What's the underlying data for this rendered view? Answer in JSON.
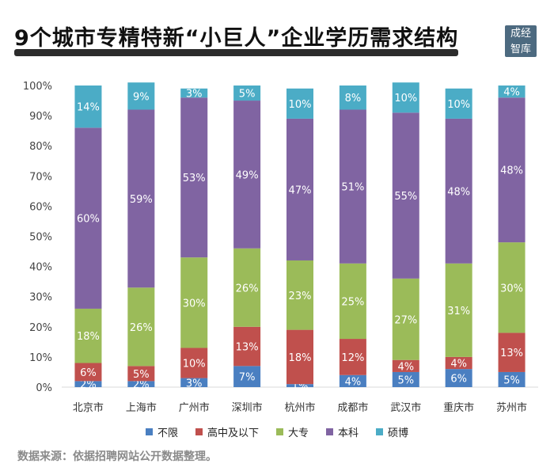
{
  "title": "9个城市专精特新“小巨人”企业学历需求结构",
  "logo_lines": [
    "成经",
    "智库"
  ],
  "source": "数据来源：依据招聘网站公开数据整理。",
  "colors": {
    "不限": "#4a7fc1",
    "高中及以下": "#c0504d",
    "大专": "#9bbb59",
    "本科": "#8064a2",
    "硕博": "#4bacc6"
  },
  "chart_data": {
    "type": "bar",
    "stacked": true,
    "categories": [
      "北京市",
      "上海市",
      "广州市",
      "深圳市",
      "杭州市",
      "成都市",
      "武汉市",
      "重庆市",
      "苏州市"
    ],
    "series": [
      {
        "name": "不限",
        "values": [
          2,
          2,
          3,
          7,
          1,
          4,
          5,
          6,
          5
        ]
      },
      {
        "name": "高中及以下",
        "values": [
          6,
          5,
          10,
          13,
          18,
          12,
          4,
          4,
          13
        ]
      },
      {
        "name": "大专",
        "values": [
          18,
          26,
          30,
          26,
          23,
          25,
          27,
          31,
          30
        ]
      },
      {
        "name": "本科",
        "values": [
          60,
          59,
          53,
          49,
          47,
          51,
          55,
          48,
          48
        ]
      },
      {
        "name": "硕博",
        "values": [
          14,
          9,
          3,
          5,
          10,
          8,
          10,
          10,
          4
        ]
      }
    ],
    "yticks": [
      "0%",
      "10%",
      "20%",
      "30%",
      "40%",
      "50%",
      "60%",
      "70%",
      "80%",
      "90%",
      "100%"
    ],
    "ylim": [
      0,
      100
    ],
    "grid": false,
    "legend": "bottom"
  }
}
